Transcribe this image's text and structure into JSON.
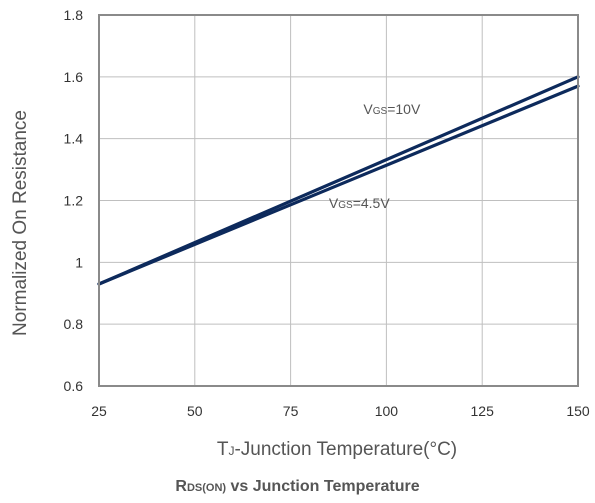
{
  "chart_data": {
    "type": "line",
    "title": {
      "prefix": "R",
      "subscript": "DS(ON)",
      "suffix": " vs Junction Temperature"
    },
    "xlabel": {
      "prefix": "T",
      "subscript": "J",
      "suffix": "-Junction Temperature(°C)"
    },
    "ylabel": "Normalized On Resistance",
    "xlim": [
      25,
      150
    ],
    "ylim": [
      0.6,
      1.8
    ],
    "x_ticks": [
      25,
      50,
      75,
      100,
      125,
      150
    ],
    "x_tick_labels": [
      "25",
      "50",
      "75",
      "100",
      "125",
      "150"
    ],
    "y_ticks": [
      0.6,
      0.8,
      1.0,
      1.2,
      1.4,
      1.6,
      1.8
    ],
    "y_tick_labels": [
      "0.6",
      "0.8",
      "1",
      "1.2",
      "1.4",
      "1.6",
      "1.8"
    ],
    "grid": true,
    "series": [
      {
        "key": "vgs10",
        "x": [
          25,
          150
        ],
        "y": [
          0.93,
          1.6
        ],
        "color": "#0d2a5c"
      },
      {
        "key": "vgs45",
        "x": [
          25,
          150
        ],
        "y": [
          0.93,
          1.57
        ],
        "color": "#0d2a5c"
      }
    ],
    "annotations": [
      {
        "prefix": "V",
        "subscript": "GS",
        "suffix": "=10V",
        "x": 94,
        "y": 1.48
      },
      {
        "prefix": "V",
        "subscript": "GS",
        "suffix": "=4.5V",
        "x": 85,
        "y": 1.175
      }
    ]
  }
}
